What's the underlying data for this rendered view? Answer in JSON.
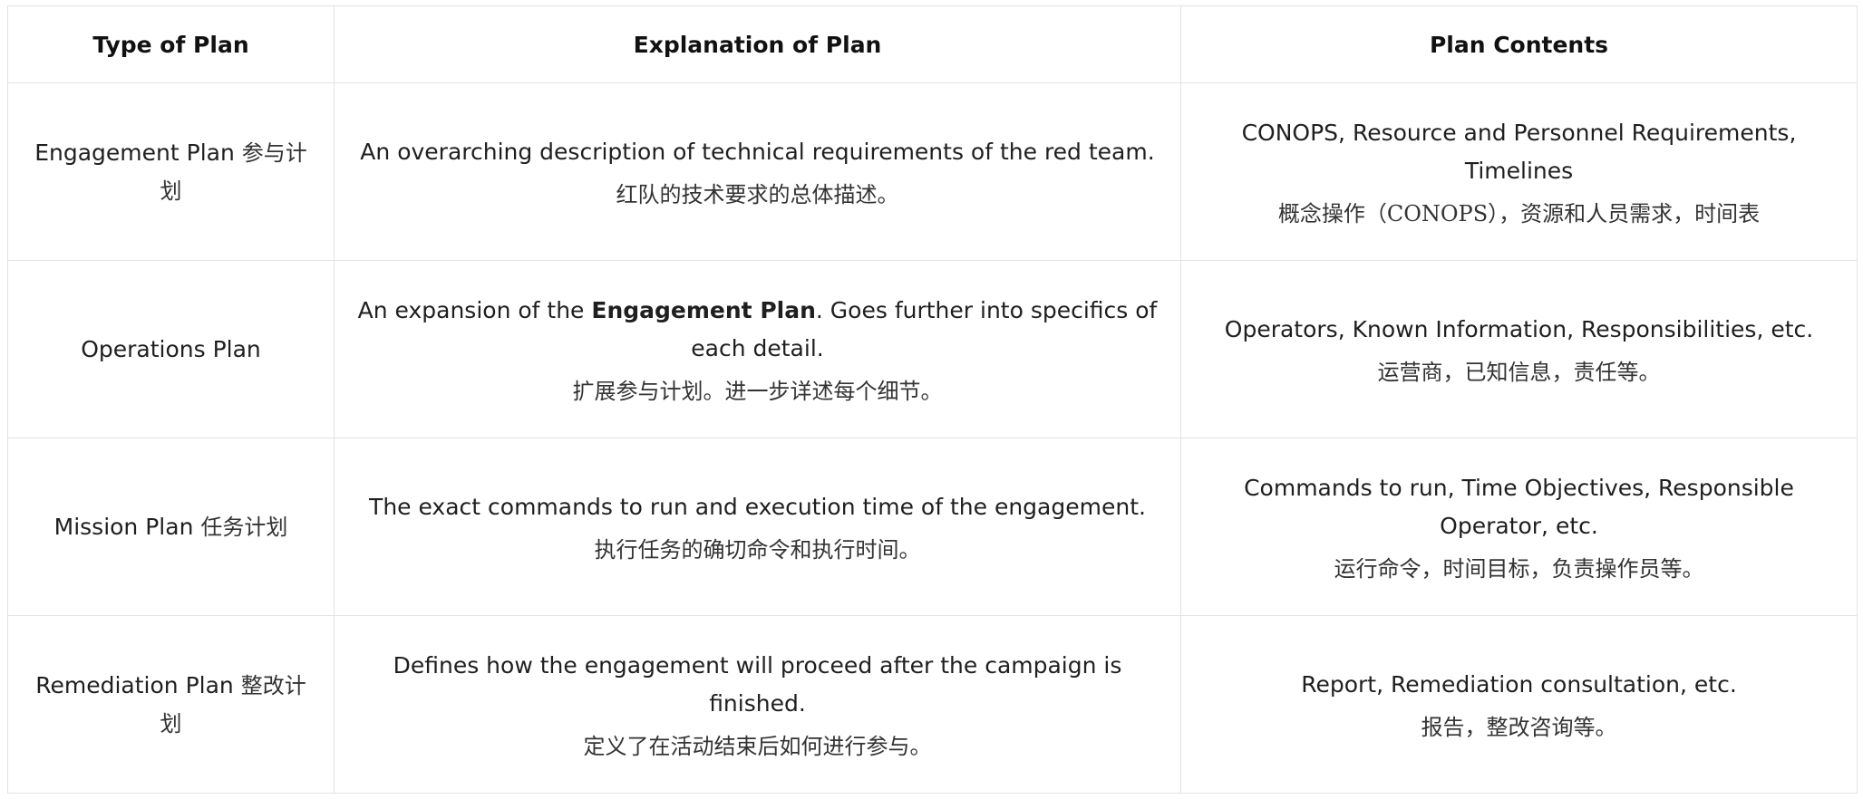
{
  "table": {
    "headers": [
      "Type of Plan",
      "Explanation of Plan",
      "Plan Contents"
    ],
    "rows": [
      {
        "type_en": "Engagement Plan",
        "type_zh": "参与计划",
        "explanation_en_pre": "An overarching description of technical requirements of the red team.",
        "explanation_en_bold": "",
        "explanation_en_post": "",
        "explanation_zh": "红队的技术要求的总体描述。",
        "contents_en": "CONOPS, Resource and Personnel Requirements, Timelines",
        "contents_zh": "概念操作（CONOPS），资源和人员需求，时间表"
      },
      {
        "type_en": "Operations Plan",
        "type_zh": "",
        "explanation_en_pre": "An expansion of the ",
        "explanation_en_bold": "Engagement Plan",
        "explanation_en_post": ". Goes further into specifics of each detail.",
        "explanation_zh": "扩展参与计划。进一步详述每个细节。",
        "contents_en": "Operators, Known Information, Responsibilities, etc.",
        "contents_zh": "运营商，已知信息，责任等。"
      },
      {
        "type_en": "Mission Plan",
        "type_zh": "任务计划",
        "explanation_en_pre": "The exact commands to run and execution time of the engagement.",
        "explanation_en_bold": "",
        "explanation_en_post": "",
        "explanation_zh": "执行任务的确切命令和执行时间。",
        "contents_en": "Commands to run, Time Objectives, Responsible Operator, etc.",
        "contents_zh": "运行命令，时间目标，负责操作员等。"
      },
      {
        "type_en": "Remediation Plan",
        "type_zh": "整改计划",
        "explanation_en_pre": "Defines how the engagement will proceed after the campaign is finished.",
        "explanation_en_bold": "",
        "explanation_en_post": "",
        "explanation_zh": "定义了在活动结束后如何进行参与。",
        "contents_en": "Report, Remediation consultation, etc.",
        "contents_zh": "报告，整改咨询等。"
      }
    ]
  }
}
